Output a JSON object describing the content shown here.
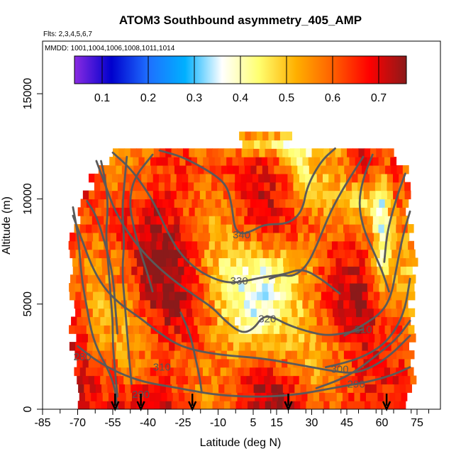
{
  "chart_data": {
    "type": "heatmap",
    "title": "ATOM3 Southbound asymmetry_405_AMP",
    "flights_note": "Flts: 2,3,4,5,6,7",
    "dates_note": "MMDD: 1001,1004,1006,1008,1011,1014",
    "xlabel": "Latitude (deg N)",
    "ylabel": "Altitude (m)",
    "xlim": [
      -85,
      85
    ],
    "ylim": [
      0,
      17500
    ],
    "x_ticks": [
      -85,
      -70,
      -55,
      -40,
      -25,
      -10,
      5,
      15,
      30,
      45,
      60,
      75
    ],
    "x_tick_labels": [
      "-85",
      "-70",
      "-55",
      "-40",
      "-25",
      "-10",
      "5",
      "15",
      "30",
      "45",
      "60",
      "75"
    ],
    "y_ticks": [
      0,
      5000,
      10000,
      15000
    ],
    "y_tick_labels": [
      "0",
      "5000",
      "10000",
      "15000"
    ],
    "colorbar": {
      "range": [
        0.04,
        0.76
      ],
      "ticks": [
        0.1,
        0.2,
        0.3,
        0.4,
        0.5,
        0.6,
        0.7
      ],
      "tick_labels": [
        "0.1",
        "0.2",
        "0.3",
        "0.4",
        "0.5",
        "0.6",
        "0.7"
      ],
      "colors": [
        "#8a2be2",
        "#0000cd",
        "#1e6fff",
        "#00b0ff",
        "#ffffff",
        "#ffff70",
        "#ffb000",
        "#ff6000",
        "#ff0000",
        "#8b1a1a"
      ]
    },
    "contour_labels": [
      {
        "label": "340",
        "lat": 0,
        "alt": 8300
      },
      {
        "label": "330",
        "lat": -1,
        "alt": 6100
      },
      {
        "label": "320",
        "lat": 11,
        "alt": 4300
      },
      {
        "label": "310",
        "lat": 52,
        "alt": 3800
      },
      {
        "label": "300",
        "lat": 42,
        "alt": 1900
      },
      {
        "label": "290",
        "lat": 49,
        "alt": 1200
      },
      {
        "label": "280",
        "lat": -68,
        "alt": 2500
      },
      {
        "label": "310",
        "lat": -34,
        "alt": 2000
      },
      {
        "label": "290",
        "lat": -43,
        "alt": 700
      }
    ],
    "profile_markers_lat": [
      -54,
      -43,
      -21,
      20,
      62
    ],
    "data_extent": {
      "lat_range": [
        -69,
        71
      ],
      "alt_range": [
        0,
        13000
      ]
    }
  }
}
